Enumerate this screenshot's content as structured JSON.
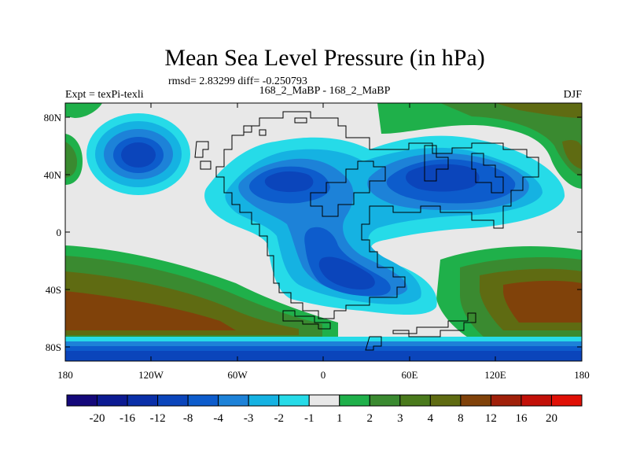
{
  "title": "Mean Sea Level Pressure (in hPa)",
  "stats_line": "rmsd= 2.83299 diff= -0.250793",
  "left_label": "Expt = texPi-texli",
  "center_label": "168_2_MaBP - 168_2_MaBP",
  "right_label": "DJF",
  "map": {
    "lon_ticks": [
      "180",
      "120W",
      "60W",
      "0",
      "60E",
      "120E",
      "180"
    ],
    "lat_ticks": [
      "80N",
      "40N",
      "0",
      "40S",
      "80S"
    ],
    "lon_range": [
      -180,
      180
    ],
    "lat_range": [
      -90,
      90
    ]
  },
  "colorbar": {
    "labels": [
      "-20",
      "-16",
      "-12",
      "-8",
      "-4",
      "-3",
      "-2",
      "-1",
      "1",
      "2",
      "3",
      "4",
      "8",
      "12",
      "16",
      "20"
    ],
    "colors": [
      "#14087a",
      "#0c1a92",
      "#0a2fa8",
      "#0b45bb",
      "#0d5ccc",
      "#1d82d8",
      "#15b2e2",
      "#26dbe8",
      "#e8e8e8",
      "#1fb04a",
      "#3a8a30",
      "#4a7a1c",
      "#5f6b12",
      "#80420a",
      "#a0200a",
      "#c21008",
      "#e01006"
    ]
  }
}
